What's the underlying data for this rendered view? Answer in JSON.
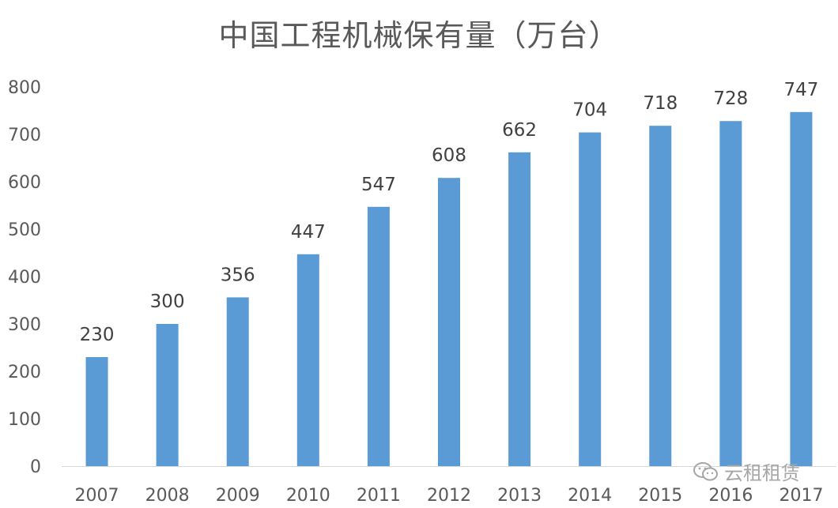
{
  "watermark": {
    "text": "云租租赁",
    "icon": "wechat-icon"
  },
  "colors": {
    "bar": "#5b9bd5",
    "axis": "#d9d9d9",
    "text": "#595959"
  },
  "chart_data": {
    "type": "bar",
    "title": "中国工程机械保有量（万台）",
    "xlabel": "",
    "ylabel": "",
    "ylim": [
      0,
      800
    ],
    "yticks": [
      0,
      100,
      200,
      300,
      400,
      500,
      600,
      700,
      800
    ],
    "grid": false,
    "categories": [
      "2007",
      "2008",
      "2009",
      "2010",
      "2011",
      "2012",
      "2013",
      "2014",
      "2015",
      "2016",
      "2017"
    ],
    "values": [
      230,
      300,
      356,
      447,
      547,
      608,
      662,
      704,
      718,
      728,
      747
    ]
  }
}
